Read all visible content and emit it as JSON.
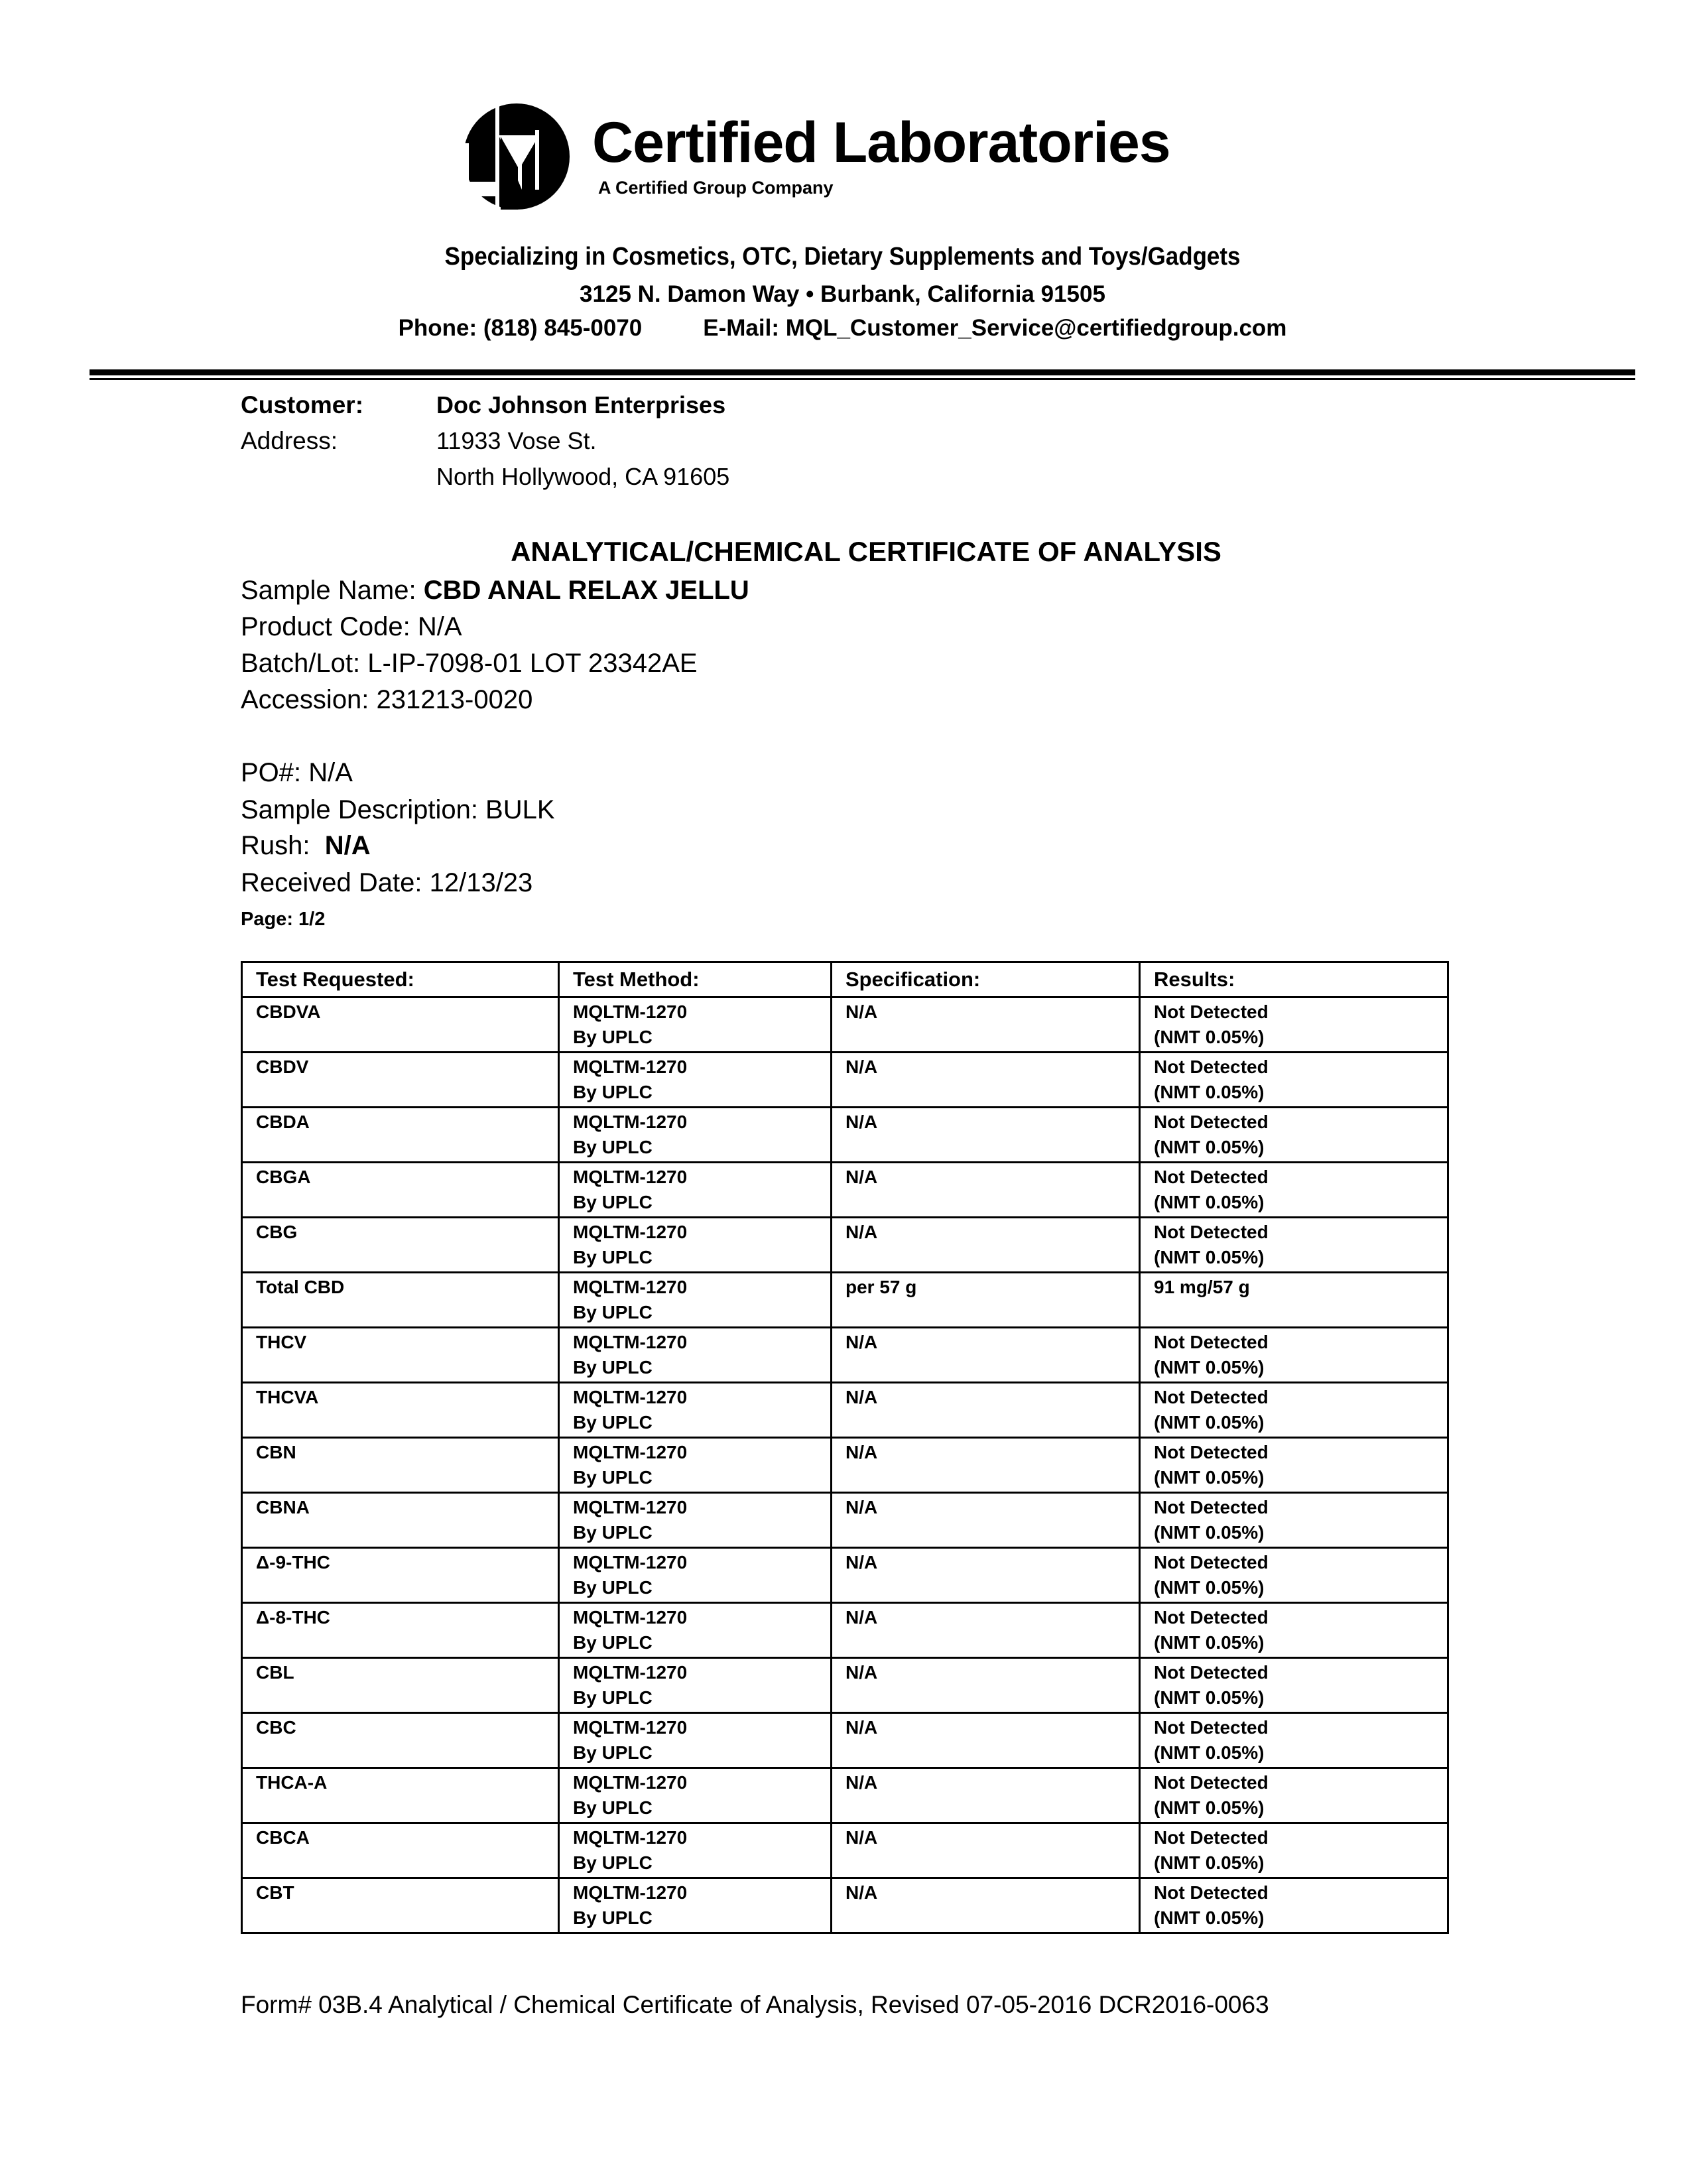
{
  "header": {
    "logo_text": "Certified Laboratories",
    "logo_subtitle": "A Certified Group Company",
    "specialty": "Specializing in Cosmetics, OTC, Dietary Supplements and Toys/Gadgets",
    "address": "3125 N. Damon Way • Burbank, California 91505",
    "phone": "Phone: (818) 845-0070",
    "email": "E-Mail: MQL_Customer_Service@certifiedgroup.com"
  },
  "customer": {
    "customer_label": "Customer:",
    "customer_value": "Doc Johnson Enterprises",
    "address_label": "Address:",
    "address_line1": "11933 Vose St.",
    "address_line2": "North Hollywood, CA 91605"
  },
  "document": {
    "title": "ANALYTICAL/CHEMICAL CERTIFICATE OF ANALYSIS",
    "sample_name_label": "Sample Name:",
    "sample_name": "CBD ANAL RELAX JELLU",
    "product_code": "Product Code: N/A",
    "batch_lot": "Batch/Lot: L-IP-7098-01 LOT 23342AE",
    "accession": "Accession: 231213-0020",
    "po": "PO#: N/A",
    "sample_description": "Sample Description: BULK",
    "rush_label": "Rush:",
    "rush_value": "N/A",
    "received_date": "Received Date: 12/13/23",
    "page": "Page: 1/2"
  },
  "table": {
    "headers": [
      "Test Requested:",
      "Test Method:",
      "Specification:",
      "Results:"
    ],
    "rows": [
      {
        "test": "CBDVA",
        "method": "MQLTM-1270",
        "method2": "By UPLC",
        "spec": "N/A",
        "result": "Not Detected",
        "result2": "(NMT 0.05%)"
      },
      {
        "test": "CBDV",
        "method": "MQLTM-1270",
        "method2": "By UPLC",
        "spec": "N/A",
        "result": "Not Detected",
        "result2": "(NMT 0.05%)"
      },
      {
        "test": "CBDA",
        "method": "MQLTM-1270",
        "method2": "By UPLC",
        "spec": "N/A",
        "result": "Not Detected",
        "result2": "(NMT 0.05%)"
      },
      {
        "test": "CBGA",
        "method": "MQLTM-1270",
        "method2": "By UPLC",
        "spec": "N/A",
        "result": "Not Detected",
        "result2": "(NMT 0.05%)"
      },
      {
        "test": "CBG",
        "method": "MQLTM-1270",
        "method2": "By UPLC",
        "spec": "N/A",
        "result": "Not Detected",
        "result2": "(NMT 0.05%)"
      },
      {
        "test": "Total CBD",
        "method": "MQLTM-1270",
        "method2": "By UPLC",
        "spec": "per 57 g",
        "result": "91 mg/57 g",
        "result2": ""
      },
      {
        "test": "THCV",
        "method": "MQLTM-1270",
        "method2": "By UPLC",
        "spec": "N/A",
        "result": "Not Detected",
        "result2": "(NMT 0.05%)"
      },
      {
        "test": "THCVA",
        "method": "MQLTM-1270",
        "method2": "By UPLC",
        "spec": "N/A",
        "result": "Not Detected",
        "result2": "(NMT 0.05%)"
      },
      {
        "test": "CBN",
        "method": "MQLTM-1270",
        "method2": "By UPLC",
        "spec": "N/A",
        "result": "Not Detected",
        "result2": "(NMT 0.05%)"
      },
      {
        "test": "CBNA",
        "method": "MQLTM-1270",
        "method2": "By UPLC",
        "spec": "N/A",
        "result": "Not Detected",
        "result2": "(NMT 0.05%)"
      },
      {
        "test": "Δ-9-THC",
        "method": "MQLTM-1270",
        "method2": "By UPLC",
        "spec": "N/A",
        "result": "Not Detected",
        "result2": "(NMT 0.05%)"
      },
      {
        "test": "Δ-8-THC",
        "method": "MQLTM-1270",
        "method2": "By UPLC",
        "spec": "N/A",
        "result": "Not Detected",
        "result2": "(NMT 0.05%)"
      },
      {
        "test": "CBL",
        "method": "MQLTM-1270",
        "method2": "By UPLC",
        "spec": "N/A",
        "result": "Not Detected",
        "result2": "(NMT 0.05%)"
      },
      {
        "test": "CBC",
        "method": "MQLTM-1270",
        "method2": "By UPLC",
        "spec": "N/A",
        "result": "Not Detected",
        "result2": "(NMT 0.05%)"
      },
      {
        "test": "THCA-A",
        "method": "MQLTM-1270",
        "method2": "By UPLC",
        "spec": "N/A",
        "result": "Not Detected",
        "result2": "(NMT 0.05%)"
      },
      {
        "test": "CBCA",
        "method": "MQLTM-1270",
        "method2": "By UPLC",
        "spec": "N/A",
        "result": "Not Detected",
        "result2": "(NMT 0.05%)"
      },
      {
        "test": "CBT",
        "method": "MQLTM-1270",
        "method2": "By UPLC",
        "spec": "N/A",
        "result": "Not Detected",
        "result2": "(NMT 0.05%)"
      }
    ]
  },
  "footer": {
    "form_text": "Form# 03B.4 Analytical / Chemical Certificate of Analysis, Revised 07-05-2016 DCR2016-0063"
  }
}
